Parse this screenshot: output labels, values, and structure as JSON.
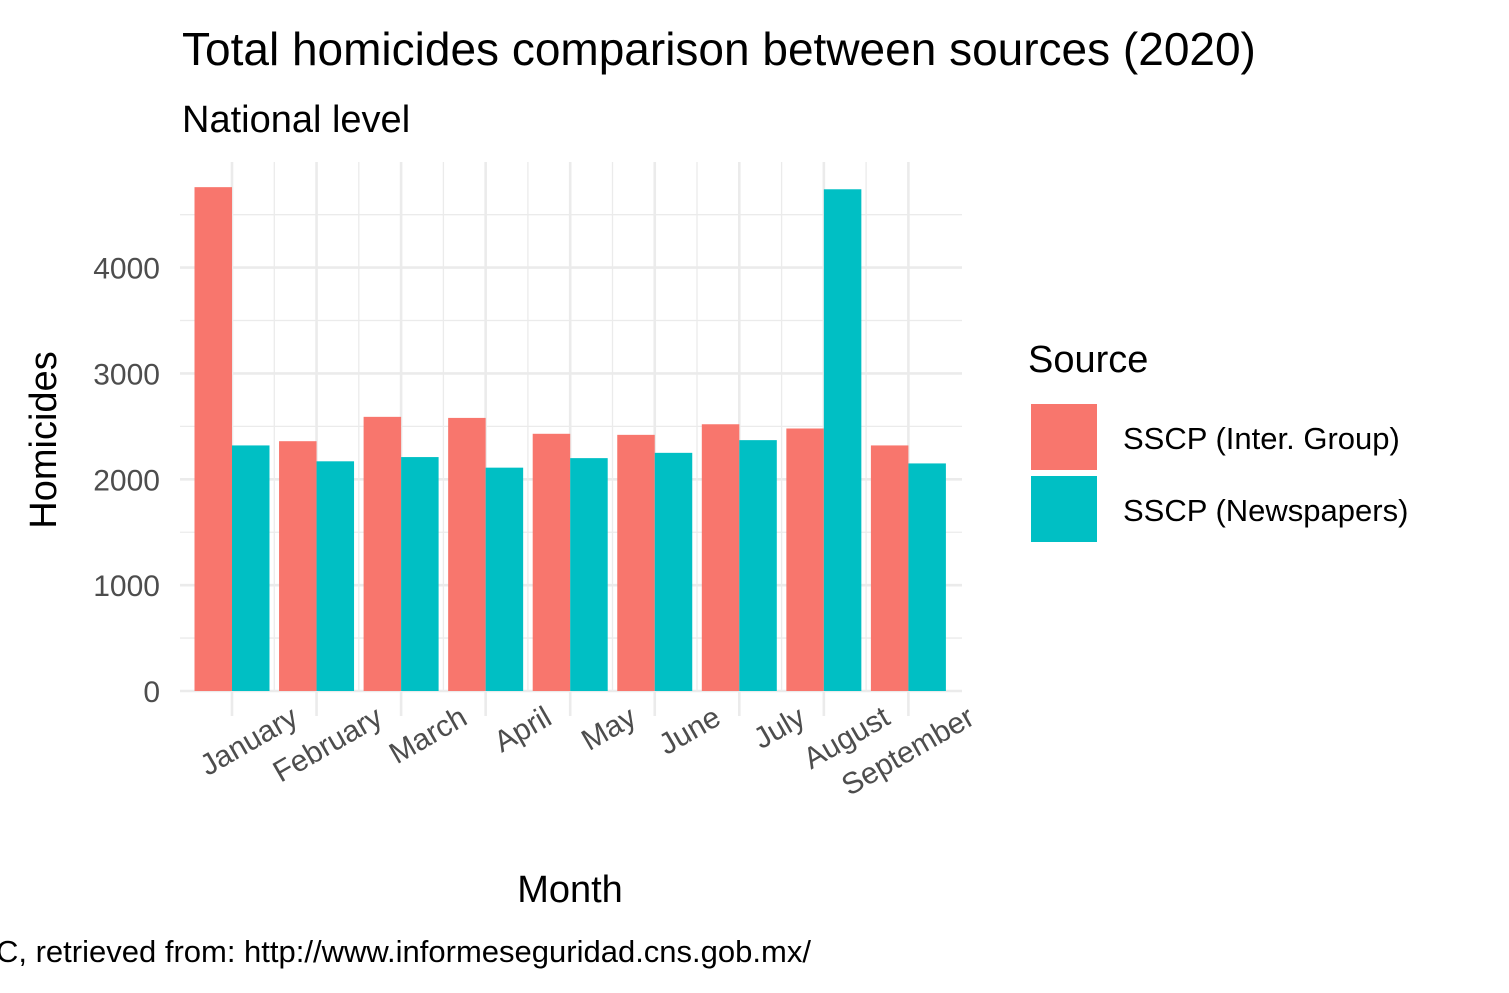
{
  "chart_data": {
    "type": "bar",
    "title": "Total homicides comparison between sources (2020)",
    "subtitle": "National level",
    "xlabel": "Month",
    "ylabel": "Homicides",
    "caption": "C, retrieved from: http://www.informeseguridad.cns.gob.mx/",
    "categories": [
      "January",
      "February",
      "March",
      "April",
      "May",
      "June",
      "July",
      "August",
      "September"
    ],
    "series": [
      {
        "name": "SSCP (Inter. Group)",
        "color": "#F8766D",
        "values": [
          4760,
          2360,
          2590,
          2580,
          2430,
          2420,
          2520,
          2480,
          2320
        ]
      },
      {
        "name": "SSCP (Newspapers)",
        "color": "#00BFC4",
        "values": [
          2320,
          2170,
          2210,
          2110,
          2200,
          2250,
          2370,
          4740,
          2150
        ]
      }
    ],
    "ylim": [
      0,
      5000
    ],
    "yticks": [
      0,
      1000,
      2000,
      3000,
      4000
    ],
    "legend": {
      "title": "Source",
      "position": "right"
    },
    "grid": true
  }
}
